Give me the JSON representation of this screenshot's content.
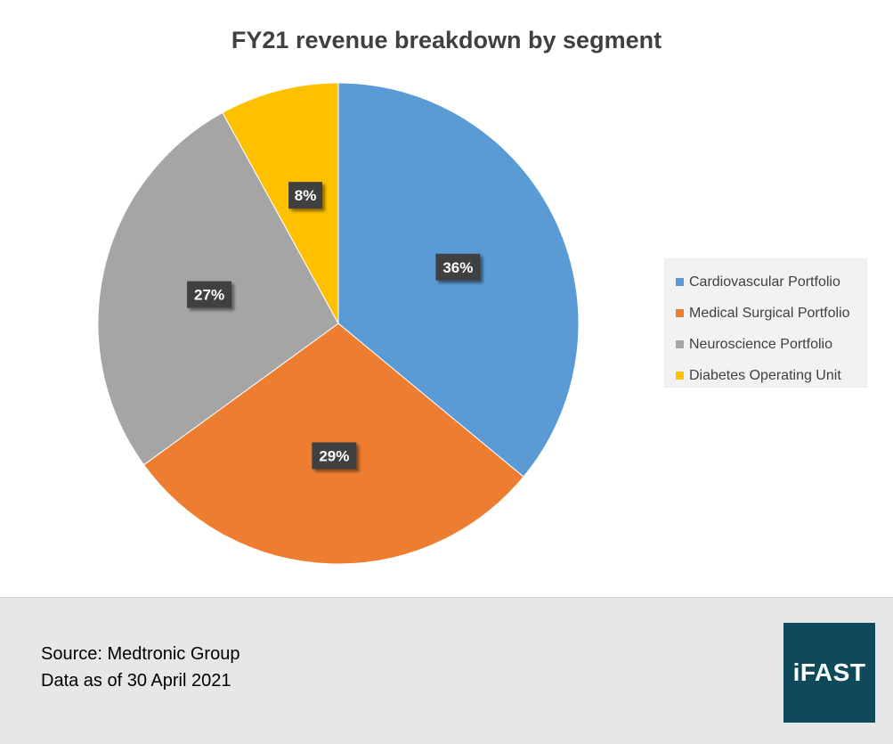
{
  "chart_data": {
    "type": "pie",
    "title": "FY21 revenue breakdown by segment",
    "categories": [
      "Cardiovascular Portfolio",
      "Medical Surgical Portfolio",
      "Neuroscience Portfolio",
      "Diabetes Operating Unit"
    ],
    "values": [
      36,
      29,
      27,
      8
    ],
    "data_labels": [
      "36%",
      "29%",
      "27%",
      "8%"
    ],
    "colors": [
      "#5b9bd5",
      "#ed7d31",
      "#a5a5a5",
      "#ffc000"
    ],
    "legend_position": "right"
  },
  "footer": {
    "source": "Source: Medtronic Group",
    "as_of": "Data as of 30 April 2021",
    "logo_text": "iFAST"
  }
}
